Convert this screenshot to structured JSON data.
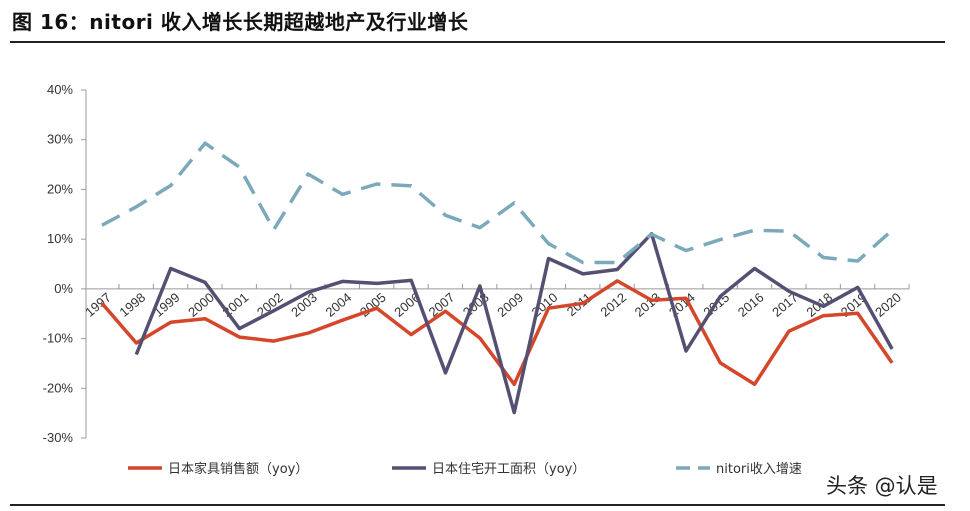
{
  "title": "图 16：nitori 收入增长长期超越地产及行业增长",
  "watermark": "头条 @认是",
  "chart_data": {
    "type": "line",
    "title": "",
    "xlabel": "",
    "ylabel": "",
    "ylim": [
      -0.3,
      0.4
    ],
    "yticks": [
      "40%",
      "30%",
      "20%",
      "10%",
      "0%",
      "-10%",
      "-20%",
      "-30%"
    ],
    "ytick_values": [
      0.4,
      0.3,
      0.2,
      0.1,
      0.0,
      -0.1,
      -0.2,
      -0.3
    ],
    "grid": false,
    "legend_position": "bottom",
    "categories": [
      "1997",
      "1998",
      "1999",
      "2000",
      "2001",
      "2002",
      "2003",
      "2004",
      "2005",
      "2006",
      "2007",
      "2008",
      "2009",
      "2010",
      "2011",
      "2012",
      "2013",
      "2014",
      "2015",
      "2016",
      "2017",
      "2018",
      "2019",
      "2020"
    ],
    "series": [
      {
        "name": "日本家具销售额（yoy）",
        "color": "#d4472a",
        "dash": false,
        "values": [
          -0.029,
          -0.109,
          -0.067,
          -0.06,
          -0.097,
          -0.105,
          -0.089,
          -0.063,
          -0.039,
          -0.092,
          -0.045,
          -0.099,
          -0.192,
          -0.039,
          -0.029,
          0.016,
          -0.023,
          -0.019,
          -0.149,
          -0.192,
          -0.085,
          -0.054,
          -0.049,
          -0.149
        ]
      },
      {
        "name": "日本住宅开工面积（yoy）",
        "color": "#554f72",
        "dash": false,
        "values": [
          null,
          -0.132,
          0.041,
          0.013,
          -0.08,
          -0.044,
          -0.007,
          0.015,
          0.011,
          0.017,
          -0.169,
          0.006,
          -0.249,
          0.061,
          0.03,
          0.039,
          0.111,
          -0.125,
          -0.015,
          0.041,
          -0.005,
          -0.035,
          0.003,
          -0.121
        ]
      },
      {
        "name": "nitori收入增速",
        "color": "#7ba9bc",
        "dash": true,
        "values": [
          0.128,
          0.165,
          0.208,
          0.293,
          0.245,
          0.119,
          0.231,
          0.19,
          0.211,
          0.207,
          0.148,
          0.123,
          0.173,
          0.091,
          0.053,
          0.053,
          0.11,
          0.077,
          0.099,
          0.118,
          0.116,
          0.063,
          0.056,
          0.118
        ]
      }
    ]
  }
}
